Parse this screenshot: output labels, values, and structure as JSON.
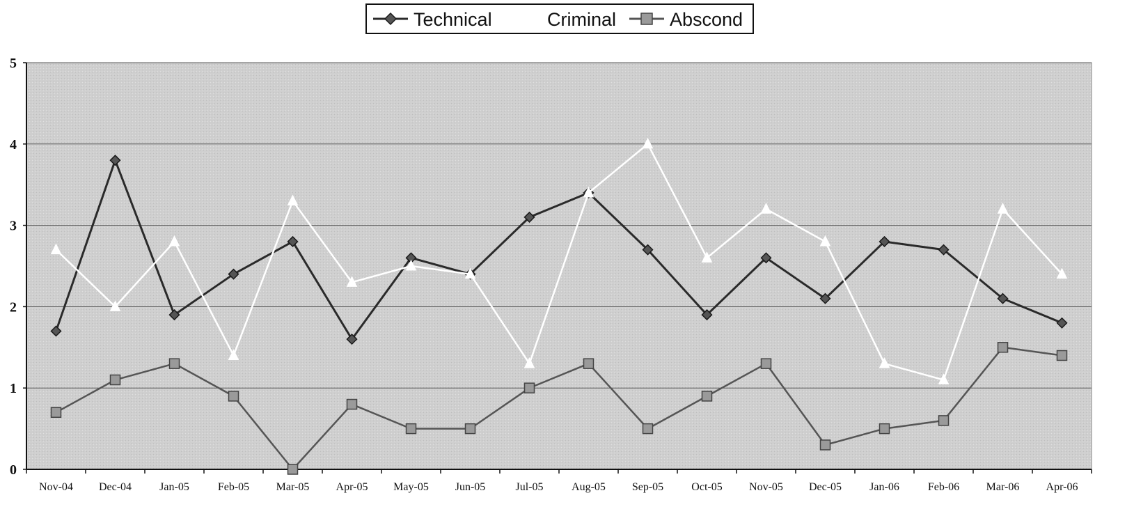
{
  "chart_data": {
    "type": "line",
    "title": "",
    "xlabel": "",
    "ylabel": "",
    "ylim": [
      0,
      5
    ],
    "yticks": [
      0,
      1,
      2,
      3,
      4,
      5
    ],
    "grid": true,
    "legend": "top-center",
    "categories": [
      "Nov-04",
      "Dec-04",
      "Jan-05",
      "Feb-05",
      "Mar-05",
      "Apr-05",
      "May-05",
      "Jun-05",
      "Jul-05",
      "Aug-05",
      "Sep-05",
      "Oct-05",
      "Nov-05",
      "Dec-05",
      "Jan-06",
      "Feb-06",
      "Mar-06",
      "Apr-06"
    ],
    "series": [
      {
        "name": "Technical",
        "marker": "diamond",
        "color": "#2a2a2a",
        "marker_color": "#555555",
        "values": [
          1.7,
          3.8,
          1.9,
          2.4,
          2.8,
          1.6,
          2.6,
          2.4,
          3.1,
          3.4,
          2.7,
          1.9,
          2.6,
          2.1,
          2.8,
          2.7,
          2.1,
          1.8
        ]
      },
      {
        "name": "Criminal",
        "marker": "triangle",
        "color": "#ffffff",
        "marker_color": "#ffffff",
        "values": [
          2.7,
          2.0,
          2.8,
          1.4,
          3.3,
          2.3,
          2.5,
          2.4,
          1.3,
          3.4,
          4.0,
          2.6,
          3.2,
          2.8,
          1.3,
          1.1,
          3.2,
          2.4
        ]
      },
      {
        "name": "Abscond",
        "marker": "square",
        "color": "#555555",
        "marker_color": "#9a9a9a",
        "values": [
          0.7,
          1.1,
          1.3,
          0.9,
          0.0,
          0.8,
          0.5,
          0.5,
          1.0,
          1.3,
          0.5,
          0.9,
          1.3,
          0.3,
          0.5,
          0.6,
          1.5,
          1.4
        ]
      }
    ],
    "colors": {
      "plot_background": "#cfcfcf",
      "gridline": "#555555"
    }
  }
}
